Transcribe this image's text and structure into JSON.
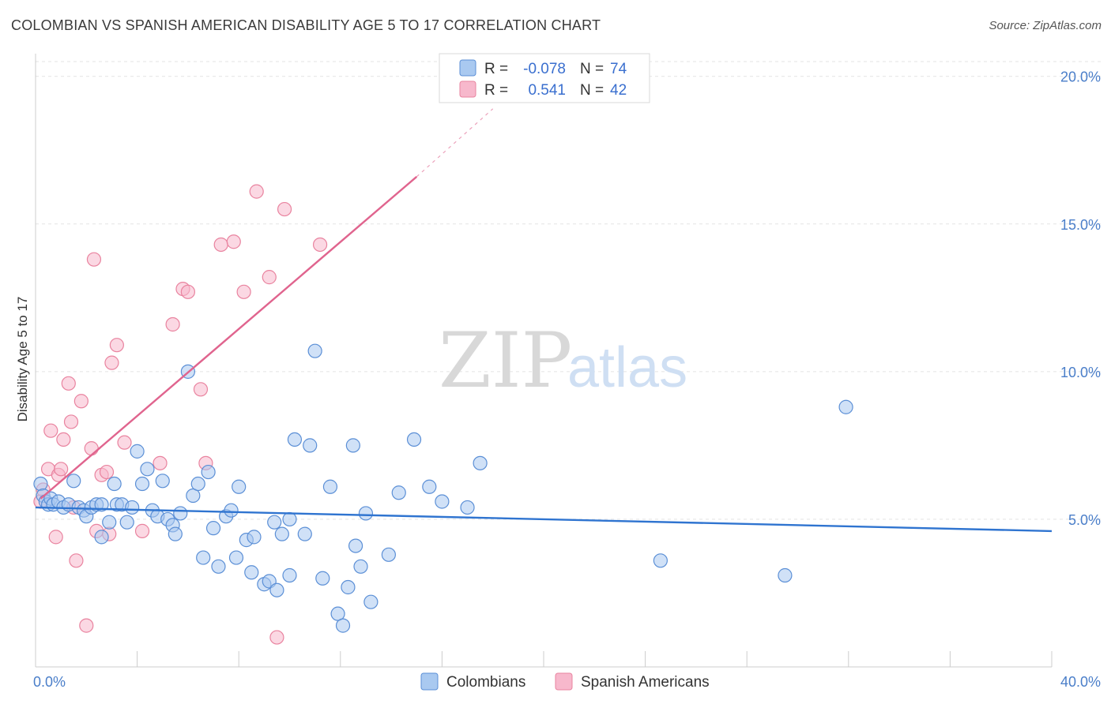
{
  "header": {
    "title": "COLOMBIAN VS SPANISH AMERICAN DISABILITY AGE 5 TO 17 CORRELATION CHART",
    "source": "Source: ZipAtlas.com"
  },
  "watermark": {
    "zip": "ZIP",
    "atlas": "atlas"
  },
  "legend_box": {
    "r_label": "R =",
    "n_label": "N =",
    "rows": [
      {
        "r": "-0.078",
        "n": "74",
        "color": "#a9c9f0"
      },
      {
        "r": "0.541",
        "n": "42",
        "color": "#f7b8cc"
      }
    ]
  },
  "chart_data": {
    "type": "scatter",
    "title": "COLOMBIAN VS SPANISH AMERICAN DISABILITY AGE 5 TO 17 CORRELATION CHART",
    "xlabel": "",
    "ylabel": "Disability Age 5 to 17",
    "xlim": [
      0,
      40
    ],
    "ylim": [
      0,
      20.5
    ],
    "x_tick_labels": [
      "0.0%",
      "40.0%"
    ],
    "y_ticks": [
      5,
      10,
      15,
      20
    ],
    "y_tick_labels": [
      "5.0%",
      "10.0%",
      "15.0%",
      "20.0%"
    ],
    "legend_position": "top-center",
    "series": [
      {
        "name": "Colombians",
        "color": "#a9c9f0",
        "stroke": "#5b8fd6",
        "trend_color": "#2f74d0",
        "trend": {
          "x": [
            0,
            40
          ],
          "y": [
            5.4,
            4.6
          ]
        },
        "points": [
          [
            0.2,
            6.2
          ],
          [
            0.3,
            5.8
          ],
          [
            0.4,
            5.6
          ],
          [
            0.5,
            5.5
          ],
          [
            0.6,
            5.7
          ],
          [
            0.7,
            5.5
          ],
          [
            0.9,
            5.6
          ],
          [
            1.1,
            5.4
          ],
          [
            1.3,
            5.5
          ],
          [
            1.5,
            6.3
          ],
          [
            1.7,
            5.4
          ],
          [
            1.9,
            5.3
          ],
          [
            2.0,
            5.1
          ],
          [
            2.2,
            5.4
          ],
          [
            2.4,
            5.5
          ],
          [
            2.6,
            5.5
          ],
          [
            2.6,
            4.4
          ],
          [
            2.9,
            4.9
          ],
          [
            3.1,
            6.2
          ],
          [
            3.2,
            5.5
          ],
          [
            3.4,
            5.5
          ],
          [
            3.6,
            4.9
          ],
          [
            3.8,
            5.4
          ],
          [
            4.0,
            7.3
          ],
          [
            4.2,
            6.2
          ],
          [
            4.4,
            6.7
          ],
          [
            4.6,
            5.3
          ],
          [
            4.8,
            5.1
          ],
          [
            5.0,
            6.3
          ],
          [
            5.2,
            5.0
          ],
          [
            5.4,
            4.8
          ],
          [
            5.5,
            4.5
          ],
          [
            5.7,
            5.2
          ],
          [
            6.0,
            10.0
          ],
          [
            6.2,
            5.8
          ],
          [
            6.4,
            6.2
          ],
          [
            6.6,
            3.7
          ],
          [
            6.8,
            6.6
          ],
          [
            7.0,
            4.7
          ],
          [
            7.2,
            3.4
          ],
          [
            7.5,
            5.1
          ],
          [
            7.7,
            5.3
          ],
          [
            7.9,
            3.7
          ],
          [
            8.0,
            6.1
          ],
          [
            8.3,
            4.3
          ],
          [
            8.5,
            3.2
          ],
          [
            8.6,
            4.4
          ],
          [
            9.0,
            2.8
          ],
          [
            9.2,
            2.9
          ],
          [
            9.4,
            4.9
          ],
          [
            9.5,
            2.6
          ],
          [
            9.7,
            4.5
          ],
          [
            10.0,
            5.0
          ],
          [
            10.0,
            3.1
          ],
          [
            10.2,
            7.7
          ],
          [
            10.6,
            4.5
          ],
          [
            10.8,
            7.5
          ],
          [
            11.0,
            10.7
          ],
          [
            11.3,
            3.0
          ],
          [
            11.6,
            6.1
          ],
          [
            11.9,
            1.8
          ],
          [
            12.1,
            1.4
          ],
          [
            12.3,
            2.7
          ],
          [
            12.5,
            7.5
          ],
          [
            12.6,
            4.1
          ],
          [
            12.8,
            3.4
          ],
          [
            13.0,
            5.2
          ],
          [
            13.2,
            2.2
          ],
          [
            13.9,
            3.8
          ],
          [
            14.3,
            5.9
          ],
          [
            14.9,
            7.7
          ],
          [
            15.5,
            6.1
          ],
          [
            16.0,
            5.6
          ],
          [
            17.0,
            5.4
          ],
          [
            17.5,
            6.9
          ],
          [
            24.6,
            3.6
          ],
          [
            29.5,
            3.1
          ],
          [
            31.9,
            8.8
          ]
        ]
      },
      {
        "name": "Spanish Americans",
        "color": "#f7b8cc",
        "stroke": "#e9839f",
        "trend_color": "#e0648e",
        "trend": {
          "x": [
            0.2,
            15.0
          ],
          "y": [
            5.7,
            16.6
          ]
        },
        "trend_ext": {
          "x": [
            15.0,
            18.0
          ],
          "y": [
            16.6,
            18.9
          ]
        },
        "points": [
          [
            0.2,
            5.6
          ],
          [
            0.3,
            6.0
          ],
          [
            0.5,
            6.7
          ],
          [
            0.6,
            8.0
          ],
          [
            0.8,
            4.4
          ],
          [
            0.9,
            6.5
          ],
          [
            1.0,
            6.7
          ],
          [
            1.1,
            7.7
          ],
          [
            1.3,
            9.6
          ],
          [
            1.4,
            8.3
          ],
          [
            1.5,
            5.4
          ],
          [
            1.6,
            3.6
          ],
          [
            1.8,
            9.0
          ],
          [
            2.0,
            1.4
          ],
          [
            2.2,
            7.4
          ],
          [
            2.3,
            13.8
          ],
          [
            2.4,
            4.6
          ],
          [
            2.6,
            6.5
          ],
          [
            2.8,
            6.6
          ],
          [
            2.9,
            4.5
          ],
          [
            3.0,
            10.3
          ],
          [
            3.2,
            10.9
          ],
          [
            3.5,
            7.6
          ],
          [
            4.2,
            4.6
          ],
          [
            4.9,
            6.9
          ],
          [
            5.4,
            11.6
          ],
          [
            5.8,
            12.8
          ],
          [
            6.0,
            12.7
          ],
          [
            6.5,
            9.4
          ],
          [
            6.7,
            6.9
          ],
          [
            7.3,
            14.3
          ],
          [
            7.8,
            14.4
          ],
          [
            8.2,
            12.7
          ],
          [
            8.7,
            16.1
          ],
          [
            9.2,
            13.2
          ],
          [
            9.5,
            1.0
          ],
          [
            9.8,
            15.5
          ],
          [
            11.2,
            14.3
          ]
        ]
      }
    ]
  },
  "bottom_legend": {
    "items": [
      {
        "label": "Colombians",
        "color": "#a9c9f0"
      },
      {
        "label": "Spanish Americans",
        "color": "#f7b8cc"
      }
    ]
  }
}
